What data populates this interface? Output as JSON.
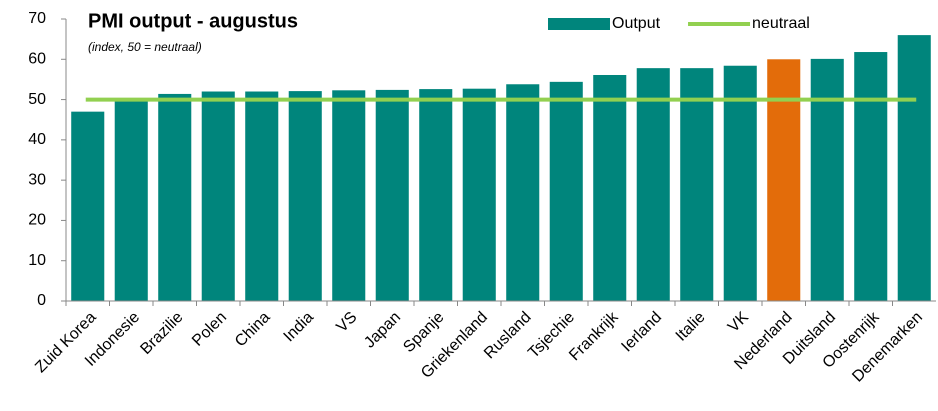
{
  "chart_data": {
    "type": "bar",
    "title": "PMI output - augustus",
    "subtitle": "(index, 50 = neutraal)",
    "categories": [
      "Zuid Korea",
      "Indonesie",
      "Brazilie",
      "Polen",
      "China",
      "India",
      "VS",
      "Japan",
      "Spanje",
      "Griekenland",
      "Rusland",
      "Tsjechie",
      "Frankrijk",
      "Ierland",
      "Italie",
      "VK",
      "Nederland",
      "Duitsland",
      "Oostenrijk",
      "Denemarken"
    ],
    "series": [
      {
        "name": "Output",
        "type": "bar",
        "color": "#00857c",
        "colors": [
          "#00857c",
          "#00857c",
          "#00857c",
          "#00857c",
          "#00857c",
          "#00857c",
          "#00857c",
          "#00857c",
          "#00857c",
          "#00857c",
          "#00857c",
          "#00857c",
          "#00857c",
          "#00857c",
          "#00857c",
          "#00857c",
          "#e36c0a",
          "#00857c",
          "#00857c",
          "#00857c"
        ],
        "values": [
          47,
          50.2,
          51.4,
          52,
          52,
          52.1,
          52.3,
          52.4,
          52.6,
          52.7,
          53.8,
          54.4,
          56.1,
          57.8,
          57.8,
          58.4,
          60,
          60.1,
          61.8,
          66
        ]
      },
      {
        "name": "neutraal",
        "type": "line",
        "color": "#92d050",
        "values": [
          50,
          50,
          50,
          50,
          50,
          50,
          50,
          50,
          50,
          50,
          50,
          50,
          50,
          50,
          50,
          50,
          50,
          50,
          50,
          50
        ]
      }
    ],
    "ylim": [
      0,
      70
    ],
    "yticks": [
      0,
      10,
      20,
      30,
      40,
      50,
      60,
      70
    ],
    "grid": false,
    "legend": "top-right"
  }
}
